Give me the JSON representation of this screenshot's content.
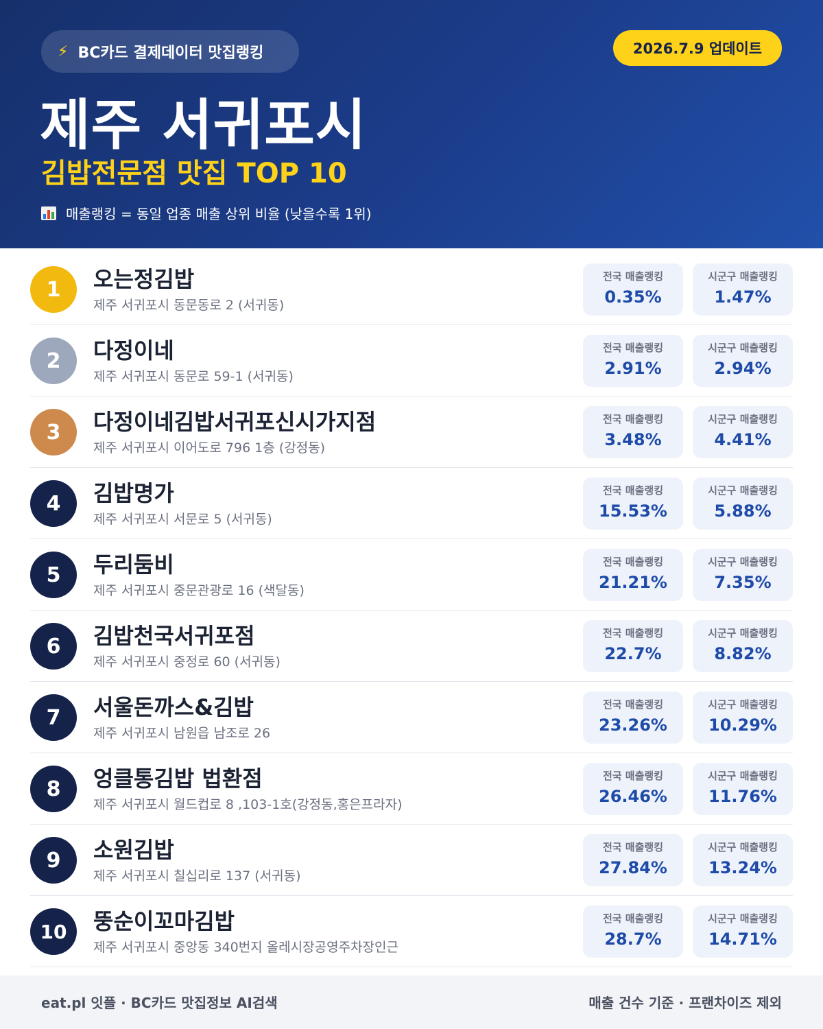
{
  "header": {
    "pill_icon": "lightning-icon",
    "pill_label": "BC카드 결제데이터 맛집랭킹",
    "update_label": "2026.7.9 업데이트",
    "city": "제주 서귀포시",
    "subtitle": "김밥전문점 맛집 TOP 10",
    "note_icon": "bar-chart-icon",
    "note": "매출랭킹 = 동일 업종 매출 상위 비율 (낮을수록 1위)"
  },
  "colors": {
    "header_bg": "#1c3d8c",
    "accent_yellow": "#ffd21a",
    "gold": "#f2b90f",
    "silver": "#9ea8bd",
    "bronze": "#cd8a4c",
    "navy": "#15224a",
    "value_blue": "#1f4ba8"
  },
  "stat_labels": {
    "national": "전국 매출랭킹",
    "regional": "시군구 매출랭킹"
  },
  "restaurants": [
    {
      "rank": "1",
      "name": "오는정김밥",
      "address": "제주 서귀포시 동문동로 2 (서귀동)",
      "national": "0.35%",
      "regional": "1.47%"
    },
    {
      "rank": "2",
      "name": "다정이네",
      "address": "제주 서귀포시 동문로 59-1 (서귀동)",
      "national": "2.91%",
      "regional": "2.94%"
    },
    {
      "rank": "3",
      "name": "다정이네김밥서귀포신시가지점",
      "address": "제주 서귀포시 이어도로 796 1층 (강정동)",
      "national": "3.48%",
      "regional": "4.41%"
    },
    {
      "rank": "4",
      "name": "김밥명가",
      "address": "제주 서귀포시 서문로 5 (서귀동)",
      "national": "15.53%",
      "regional": "5.88%"
    },
    {
      "rank": "5",
      "name": "두리둠비",
      "address": "제주 서귀포시 중문관광로 16 (색달동)",
      "national": "21.21%",
      "regional": "7.35%"
    },
    {
      "rank": "6",
      "name": "김밥천국서귀포점",
      "address": "제주 서귀포시 중정로 60 (서귀동)",
      "national": "22.7%",
      "regional": "8.82%"
    },
    {
      "rank": "7",
      "name": "서울돈까스&김밥",
      "address": "제주 서귀포시 남원읍 남조로 26",
      "national": "23.26%",
      "regional": "10.29%"
    },
    {
      "rank": "8",
      "name": "엉클통김밥 법환점",
      "address": "제주 서귀포시 월드컵로 8 ,103-1호(강정동,홍은프라자)",
      "national": "26.46%",
      "regional": "11.76%"
    },
    {
      "rank": "9",
      "name": "소원김밥",
      "address": "제주 서귀포시 칠십리로 137 (서귀동)",
      "national": "27.84%",
      "regional": "13.24%"
    },
    {
      "rank": "10",
      "name": "뚱순이꼬마김밥",
      "address": "제주 서귀포시 중앙동 340번지 올레시장공영주차장인근",
      "national": "28.7%",
      "regional": "14.71%"
    }
  ],
  "footer": {
    "left": "eat.pl 잇플 · BC카드 맛집정보 AI검색",
    "right": "매출 건수 기준 · 프랜차이즈 제외"
  }
}
